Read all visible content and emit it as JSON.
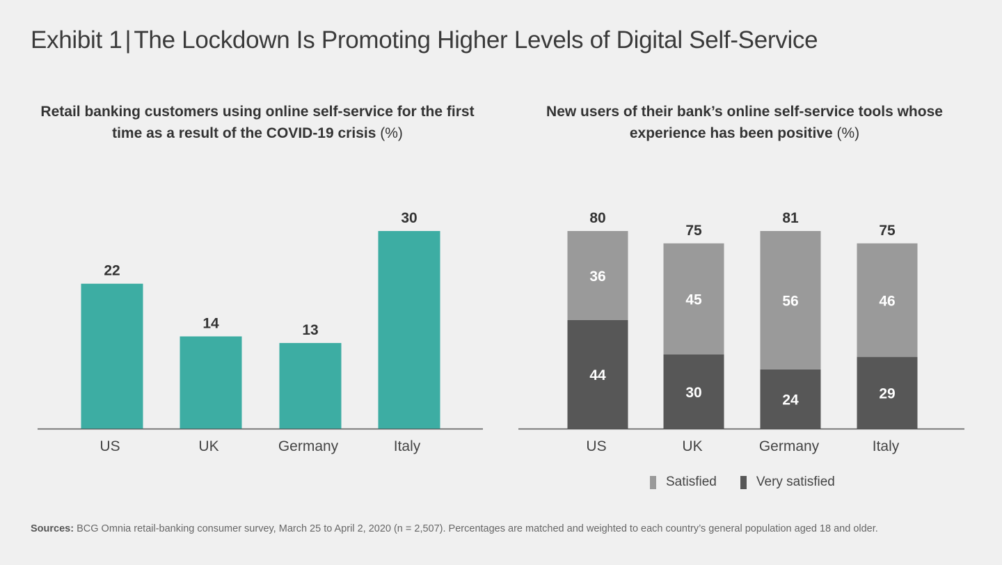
{
  "exhibit": {
    "label": "Exhibit 1",
    "title": "The Lockdown Is Promoting Higher Levels of Digital Self-Service"
  },
  "colors": {
    "teal": "#3dada3",
    "satisfied": "#9a9a9a",
    "very_satisfied": "#575757",
    "axis": "#555555",
    "label_dark": "#333333",
    "label_light": "#ffffff"
  },
  "chart_data": [
    {
      "type": "bar",
      "title": "Retail banking customers using online self-service for the first time as a result of the COVID-19 crisis",
      "title_unit": "(%)",
      "categories": [
        "US",
        "UK",
        "Germany",
        "Italy"
      ],
      "values": [
        22,
        14,
        13,
        30
      ],
      "xlabel": "",
      "ylabel": "",
      "ylim": [
        0,
        30
      ],
      "grid": false,
      "legend": "none"
    },
    {
      "type": "bar",
      "stacked": true,
      "title": "New users of their bank’s online self-service tools whose experience has been positive",
      "title_unit": "(%)",
      "categories": [
        "US",
        "UK",
        "Germany",
        "Italy"
      ],
      "series": [
        {
          "name": "Very satisfied",
          "values": [
            44,
            30,
            24,
            29
          ]
        },
        {
          "name": "Satisfied",
          "values": [
            36,
            45,
            56,
            46
          ]
        }
      ],
      "totals": [
        80,
        75,
        81,
        75
      ],
      "xlabel": "",
      "ylabel": "",
      "ylim": [
        0,
        81
      ],
      "grid": false,
      "legend": "bottom",
      "legend_entries": [
        "Satisfied",
        "Very satisfied"
      ]
    }
  ],
  "footer": {
    "sources_label": "Sources:",
    "sources_text": "BCG Omnia retail-banking consumer survey, March 25 to April 2, 2020 (n = 2,507). Percentages are matched and weighted to each country’s general population aged 18 and older."
  }
}
